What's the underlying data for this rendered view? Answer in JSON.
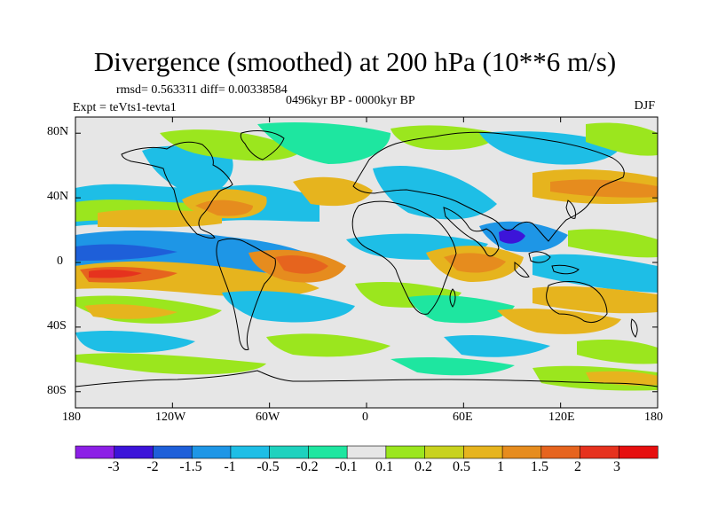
{
  "title": "Divergence (smoothed) at 200 hPa (10**6 m/s)",
  "stats_line": "rmsd= 0.563311 diff= 0.00338584",
  "period_label": "0496kyr BP - 0000kyr BP",
  "experiment_label": "Expt = teVts1-tevta1",
  "season_label": "DJF",
  "map": {
    "projection": "cylindrical equidistant",
    "lon_range": [
      -180,
      180
    ],
    "lat_range": [
      -90,
      90
    ],
    "x_ticks": [
      "180",
      "120W",
      "60W",
      "0",
      "60E",
      "120E",
      "180"
    ],
    "y_ticks": [
      "80N",
      "40N",
      "0",
      "40S",
      "80S"
    ],
    "background_color": "#e6e6e6"
  },
  "colorbar": {
    "levels": [
      "-3",
      "-2",
      "-1.5",
      "-1",
      "-0.5",
      "-0.2",
      "-0.1",
      "0.1",
      "0.2",
      "0.5",
      "1",
      "1.5",
      "2",
      "3"
    ],
    "colors": [
      "#8c1fe6",
      "#3c14d9",
      "#1e5fd9",
      "#1e96e6",
      "#1ebee6",
      "#1ed2be",
      "#1ee6a0",
      "#e6e6e6",
      "#9be61e",
      "#c8d21e",
      "#e6b41e",
      "#e68c1e",
      "#e6641e",
      "#e6321e",
      "#e60f0f"
    ]
  }
}
